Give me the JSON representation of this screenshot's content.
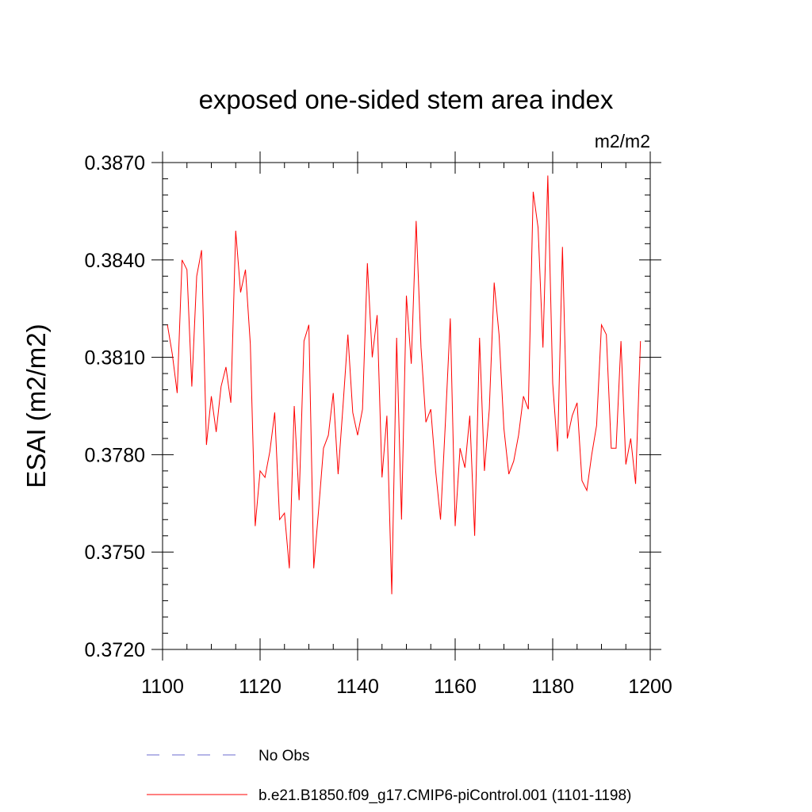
{
  "chart_data": {
    "type": "line",
    "title": "exposed one-sided stem area index",
    "units": "m2/m2",
    "ylabel": "ESAI  (m2/m2)",
    "xlabel": "",
    "xlim": [
      1100,
      1200
    ],
    "ylim": [
      0.372,
      0.387
    ],
    "xticks": [
      1100,
      1120,
      1140,
      1160,
      1180,
      1200
    ],
    "xtick_labels": [
      "1100",
      "1120",
      "1140",
      "1160",
      "1180",
      "1200"
    ],
    "yticks": [
      0.372,
      0.375,
      0.378,
      0.381,
      0.384,
      0.387
    ],
    "ytick_labels": [
      "0.3720",
      "0.3750",
      "0.3780",
      "0.3810",
      "0.3840",
      "0.3870"
    ],
    "series": [
      {
        "name": "b.e21.B1850.f09_g17.CMIP6-piControl.001 (1101-1198)",
        "color": "#ff0000",
        "style": "solid",
        "x": [
          1101,
          1102,
          1103,
          1104,
          1105,
          1106,
          1107,
          1108,
          1109,
          1110,
          1111,
          1112,
          1113,
          1114,
          1115,
          1116,
          1117,
          1118,
          1119,
          1120,
          1121,
          1122,
          1123,
          1124,
          1125,
          1126,
          1127,
          1128,
          1129,
          1130,
          1131,
          1132,
          1133,
          1134,
          1135,
          1136,
          1137,
          1138,
          1139,
          1140,
          1141,
          1142,
          1143,
          1144,
          1145,
          1146,
          1147,
          1148,
          1149,
          1150,
          1151,
          1152,
          1153,
          1154,
          1155,
          1156,
          1157,
          1158,
          1159,
          1160,
          1161,
          1162,
          1163,
          1164,
          1165,
          1166,
          1167,
          1168,
          1169,
          1170,
          1171,
          1172,
          1173,
          1174,
          1175,
          1176,
          1177,
          1178,
          1179,
          1180,
          1181,
          1182,
          1183,
          1184,
          1185,
          1186,
          1187,
          1188,
          1189,
          1190,
          1191,
          1192,
          1193,
          1194,
          1195,
          1196,
          1197,
          1198
        ],
        "y": [
          0.382,
          0.3811,
          0.3799,
          0.384,
          0.3837,
          0.3801,
          0.3835,
          0.3843,
          0.3783,
          0.3798,
          0.3787,
          0.3801,
          0.3807,
          0.3796,
          0.3849,
          0.383,
          0.3837,
          0.3814,
          0.3758,
          0.3775,
          0.3773,
          0.3781,
          0.3793,
          0.376,
          0.3762,
          0.3745,
          0.3795,
          0.3766,
          0.3815,
          0.382,
          0.3745,
          0.3763,
          0.3782,
          0.3786,
          0.3799,
          0.3774,
          0.3795,
          0.3817,
          0.3793,
          0.3786,
          0.3794,
          0.3839,
          0.381,
          0.3823,
          0.3773,
          0.3792,
          0.3737,
          0.3816,
          0.376,
          0.3829,
          0.3808,
          0.3852,
          0.3813,
          0.379,
          0.3794,
          0.3775,
          0.376,
          0.379,
          0.3822,
          0.3758,
          0.3782,
          0.3776,
          0.3792,
          0.3755,
          0.3816,
          0.3775,
          0.3794,
          0.3833,
          0.3817,
          0.3788,
          0.3774,
          0.3778,
          0.3786,
          0.3798,
          0.3794,
          0.3861,
          0.385,
          0.3813,
          0.3866,
          0.3802,
          0.3781,
          0.3844,
          0.3785,
          0.3792,
          0.3796,
          0.3772,
          0.3769,
          0.378,
          0.3789,
          0.382,
          0.3817,
          0.3782,
          0.3782,
          0.3815,
          0.3777,
          0.3785,
          0.3771,
          0.3815
        ]
      },
      {
        "name": "No Obs",
        "color": "#6b6bcf",
        "style": "dashed",
        "x": [],
        "y": []
      }
    ],
    "legend_position": "bottom-left"
  }
}
